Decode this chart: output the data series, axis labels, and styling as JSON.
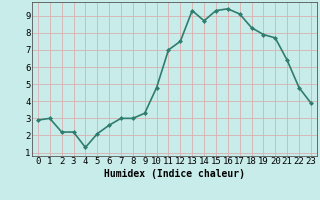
{
  "x": [
    0,
    1,
    2,
    3,
    4,
    5,
    6,
    7,
    8,
    9,
    10,
    11,
    12,
    13,
    14,
    15,
    16,
    17,
    18,
    19,
    20,
    21,
    22,
    23
  ],
  "y": [
    2.9,
    3.0,
    2.2,
    2.2,
    1.3,
    2.1,
    2.6,
    3.0,
    3.0,
    3.3,
    4.8,
    7.0,
    7.5,
    9.3,
    8.7,
    9.3,
    9.4,
    9.1,
    8.3,
    7.9,
    7.7,
    6.4,
    4.8,
    3.9
  ],
  "line_color": "#2e7d6e",
  "marker": "D",
  "marker_size": 2,
  "bg_color": "#c8ecea",
  "grid_color": "#d9b0b0",
  "xlabel": "Humidex (Indice chaleur)",
  "xlim": [
    -0.5,
    23.5
  ],
  "ylim": [
    0.8,
    9.8
  ],
  "yticks": [
    1,
    2,
    3,
    4,
    5,
    6,
    7,
    8,
    9
  ],
  "xticks": [
    0,
    1,
    2,
    3,
    4,
    5,
    6,
    7,
    8,
    9,
    10,
    11,
    12,
    13,
    14,
    15,
    16,
    17,
    18,
    19,
    20,
    21,
    22,
    23
  ],
  "xtick_labels": [
    "0",
    "1",
    "2",
    "3",
    "4",
    "5",
    "6",
    "7",
    "8",
    "9",
    "10",
    "11",
    "12",
    "13",
    "14",
    "15",
    "16",
    "17",
    "18",
    "19",
    "20",
    "21",
    "22",
    "23"
  ],
  "xlabel_fontsize": 7,
  "tick_fontsize": 6.5,
  "linewidth": 1.2,
  "spine_color": "#555555"
}
